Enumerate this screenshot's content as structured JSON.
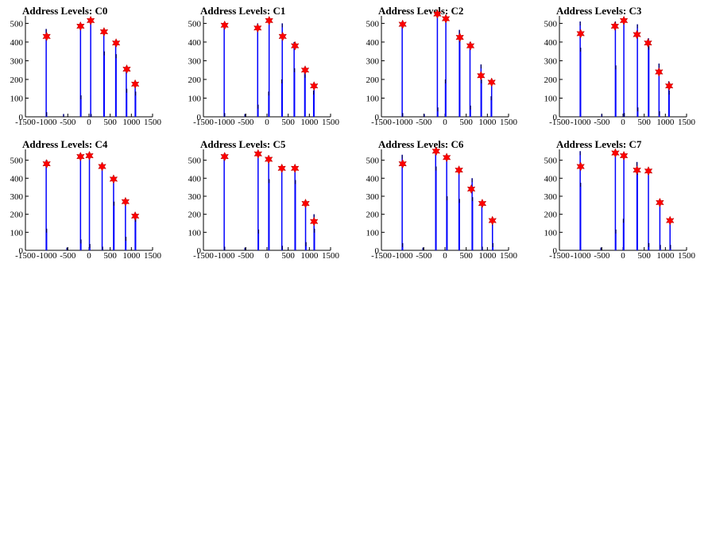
{
  "chart_data": [
    {
      "type": "bar",
      "title": "Address Levels: C0",
      "xlim": [
        -1500,
        1500
      ],
      "ylim": [
        0,
        540
      ],
      "x_ticks": [
        -1500,
        -1000,
        -500,
        0,
        500,
        1000,
        1500
      ],
      "x_tick_labels": [
        "-1500",
        "-1000",
        "-500",
        "0",
        "500",
        "1000",
        "1500"
      ],
      "y_ticks": [
        0,
        100,
        200,
        300,
        400,
        500
      ],
      "bars": [
        {
          "x": -1010,
          "y": 470
        },
        {
          "x": -1000,
          "y": 25
        },
        {
          "x": -600,
          "y": 15
        },
        {
          "x": -200,
          "y": 500
        },
        {
          "x": -190,
          "y": 115
        },
        {
          "x": 40,
          "y": 525
        },
        {
          "x": 50,
          "y": 15
        },
        {
          "x": 350,
          "y": 460
        },
        {
          "x": 360,
          "y": 350
        },
        {
          "x": 630,
          "y": 400
        },
        {
          "x": 640,
          "y": 335
        },
        {
          "x": 880,
          "y": 270
        },
        {
          "x": 890,
          "y": 150
        },
        {
          "x": 1090,
          "y": 190
        },
        {
          "x": 1100,
          "y": 135
        }
      ],
      "peaks": [
        {
          "x": -1000,
          "y": 430
        },
        {
          "x": -200,
          "y": 485
        },
        {
          "x": 40,
          "y": 515
        },
        {
          "x": 355,
          "y": 455
        },
        {
          "x": 640,
          "y": 395
        },
        {
          "x": 890,
          "y": 255
        },
        {
          "x": 1090,
          "y": 175
        }
      ]
    },
    {
      "type": "bar",
      "title": "Address Levels: C1",
      "xlim": [
        -1500,
        1500
      ],
      "ylim": [
        0,
        540
      ],
      "x_ticks": [
        -1500,
        -1000,
        -500,
        0,
        500,
        1000,
        1500
      ],
      "x_tick_labels": [
        "-1500",
        "-1000",
        "-500",
        "0",
        "500",
        "1000",
        "1500"
      ],
      "y_ticks": [
        0,
        100,
        200,
        300,
        400,
        500
      ],
      "bars": [
        {
          "x": -1010,
          "y": 505
        },
        {
          "x": -1000,
          "y": 20
        },
        {
          "x": -520,
          "y": 15
        },
        {
          "x": -220,
          "y": 500
        },
        {
          "x": -210,
          "y": 65
        },
        {
          "x": 50,
          "y": 530
        },
        {
          "x": 40,
          "y": 135
        },
        {
          "x": 360,
          "y": 500
        },
        {
          "x": 350,
          "y": 200
        },
        {
          "x": 640,
          "y": 400
        },
        {
          "x": 650,
          "y": 260
        },
        {
          "x": 890,
          "y": 265
        },
        {
          "x": 900,
          "y": 230
        },
        {
          "x": 1110,
          "y": 180
        },
        {
          "x": 1100,
          "y": 140
        }
      ],
      "peaks": [
        {
          "x": -1000,
          "y": 490
        },
        {
          "x": -220,
          "y": 475
        },
        {
          "x": 50,
          "y": 515
        },
        {
          "x": 370,
          "y": 430
        },
        {
          "x": 660,
          "y": 380
        },
        {
          "x": 900,
          "y": 250
        },
        {
          "x": 1110,
          "y": 165
        }
      ]
    },
    {
      "type": "bar",
      "title": "Address Levels: C2",
      "xlim": [
        -1500,
        1500
      ],
      "ylim": [
        0,
        540
      ],
      "x_ticks": [
        -1500,
        -1000,
        -500,
        0,
        500,
        1000,
        1500
      ],
      "x_tick_labels": [
        "-1500",
        "-1000",
        "-500",
        "0",
        "500",
        "1000",
        "1500"
      ],
      "y_ticks": [
        0,
        100,
        200,
        300,
        400,
        500
      ],
      "bars": [
        {
          "x": -1010,
          "y": 510
        },
        {
          "x": -1000,
          "y": 20
        },
        {
          "x": -490,
          "y": 15
        },
        {
          "x": -180,
          "y": 560
        },
        {
          "x": -170,
          "y": 50
        },
        {
          "x": 20,
          "y": 535
        },
        {
          "x": 10,
          "y": 200
        },
        {
          "x": 340,
          "y": 465
        },
        {
          "x": 350,
          "y": 420
        },
        {
          "x": 590,
          "y": 400
        },
        {
          "x": 600,
          "y": 60
        },
        {
          "x": 850,
          "y": 280
        },
        {
          "x": 860,
          "y": 200
        },
        {
          "x": 1100,
          "y": 200
        },
        {
          "x": 1090,
          "y": 110
        }
      ],
      "peaks": [
        {
          "x": -1000,
          "y": 495
        },
        {
          "x": -180,
          "y": 550
        },
        {
          "x": 20,
          "y": 525
        },
        {
          "x": 350,
          "y": 425
        },
        {
          "x": 600,
          "y": 380
        },
        {
          "x": 850,
          "y": 220
        },
        {
          "x": 1100,
          "y": 185
        }
      ]
    },
    {
      "type": "bar",
      "title": "Address Levels: C3",
      "xlim": [
        -1500,
        1500
      ],
      "ylim": [
        0,
        540
      ],
      "x_ticks": [
        -1500,
        -1000,
        -500,
        0,
        500,
        1000,
        1500
      ],
      "x_tick_labels": [
        "-1500",
        "-1000",
        "-500",
        "0",
        "500",
        "1000",
        "1500"
      ],
      "y_ticks": [
        0,
        100,
        200,
        300,
        400,
        500
      ],
      "bars": [
        {
          "x": -1010,
          "y": 510
        },
        {
          "x": -1000,
          "y": 370
        },
        {
          "x": -500,
          "y": 15
        },
        {
          "x": -180,
          "y": 510
        },
        {
          "x": -170,
          "y": 275
        },
        {
          "x": 20,
          "y": 530
        },
        {
          "x": 30,
          "y": 20
        },
        {
          "x": 340,
          "y": 495
        },
        {
          "x": 350,
          "y": 50
        },
        {
          "x": 600,
          "y": 420
        },
        {
          "x": 610,
          "y": 380
        },
        {
          "x": 850,
          "y": 285
        },
        {
          "x": 860,
          "y": 30
        },
        {
          "x": 1080,
          "y": 190
        },
        {
          "x": 1090,
          "y": 140
        }
      ],
      "peaks": [
        {
          "x": -1000,
          "y": 445
        },
        {
          "x": -190,
          "y": 485
        },
        {
          "x": 20,
          "y": 515
        },
        {
          "x": 330,
          "y": 440
        },
        {
          "x": 590,
          "y": 395
        },
        {
          "x": 850,
          "y": 240
        },
        {
          "x": 1090,
          "y": 165
        }
      ]
    },
    {
      "type": "bar",
      "title": "Address Levels: C4",
      "xlim": [
        -1500,
        1500
      ],
      "ylim": [
        0,
        560
      ],
      "x_ticks": [
        -1500,
        -1000,
        -500,
        0,
        500,
        1000,
        1500
      ],
      "x_tick_labels": [
        "-1500",
        "-1000",
        "-500",
        "0",
        "500",
        "1000",
        "1500"
      ],
      "y_ticks": [
        0,
        100,
        200,
        300,
        400,
        500
      ],
      "bars": [
        {
          "x": -1010,
          "y": 500
        },
        {
          "x": -1000,
          "y": 120
        },
        {
          "x": -520,
          "y": 15
        },
        {
          "x": -200,
          "y": 530
        },
        {
          "x": -190,
          "y": 60
        },
        {
          "x": 10,
          "y": 540
        },
        {
          "x": 20,
          "y": 35
        },
        {
          "x": 310,
          "y": 485
        },
        {
          "x": 320,
          "y": 20
        },
        {
          "x": 580,
          "y": 410
        },
        {
          "x": 590,
          "y": 270
        },
        {
          "x": 860,
          "y": 285
        },
        {
          "x": 870,
          "y": 75
        },
        {
          "x": 1090,
          "y": 210
        },
        {
          "x": 1100,
          "y": 180
        }
      ],
      "peaks": [
        {
          "x": -1000,
          "y": 480
        },
        {
          "x": -200,
          "y": 520
        },
        {
          "x": 10,
          "y": 525
        },
        {
          "x": 310,
          "y": 465
        },
        {
          "x": 580,
          "y": 395
        },
        {
          "x": 860,
          "y": 270
        },
        {
          "x": 1090,
          "y": 190
        }
      ]
    },
    {
      "type": "bar",
      "title": "Address Levels: C5",
      "xlim": [
        -1500,
        1500
      ],
      "ylim": [
        0,
        560
      ],
      "x_ticks": [
        -1500,
        -1000,
        -500,
        0,
        500,
        1000,
        1500
      ],
      "x_tick_labels": [
        "-1500",
        "-1000",
        "-500",
        "0",
        "500",
        "1000",
        "1500"
      ],
      "y_ticks": [
        0,
        100,
        200,
        300,
        400,
        500
      ],
      "bars": [
        {
          "x": -1010,
          "y": 520
        },
        {
          "x": -1000,
          "y": 20
        },
        {
          "x": -520,
          "y": 15
        },
        {
          "x": -210,
          "y": 545
        },
        {
          "x": -200,
          "y": 115
        },
        {
          "x": 40,
          "y": 510
        },
        {
          "x": 50,
          "y": 395
        },
        {
          "x": 350,
          "y": 460
        },
        {
          "x": 360,
          "y": 25
        },
        {
          "x": 660,
          "y": 465
        },
        {
          "x": 670,
          "y": 390
        },
        {
          "x": 910,
          "y": 265
        },
        {
          "x": 920,
          "y": 45
        },
        {
          "x": 1110,
          "y": 200
        },
        {
          "x": 1120,
          "y": 120
        }
      ],
      "peaks": [
        {
          "x": -1000,
          "y": 520
        },
        {
          "x": -210,
          "y": 535
        },
        {
          "x": 40,
          "y": 505
        },
        {
          "x": 350,
          "y": 455
        },
        {
          "x": 660,
          "y": 455
        },
        {
          "x": 910,
          "y": 260
        },
        {
          "x": 1110,
          "y": 160
        }
      ]
    },
    {
      "type": "bar",
      "title": "Address Levels: C6",
      "xlim": [
        -1500,
        1500
      ],
      "ylim": [
        0,
        560
      ],
      "x_ticks": [
        -1500,
        -1000,
        -500,
        0,
        500,
        1000,
        1500
      ],
      "x_tick_labels": [
        "-1500",
        "-1000",
        "-500",
        "0",
        "500",
        "1000",
        "1500"
      ],
      "y_ticks": [
        0,
        100,
        200,
        300,
        400,
        500
      ],
      "bars": [
        {
          "x": -1010,
          "y": 530
        },
        {
          "x": -1000,
          "y": 40
        },
        {
          "x": -520,
          "y": 15
        },
        {
          "x": -220,
          "y": 550
        },
        {
          "x": -210,
          "y": 465
        },
        {
          "x": 40,
          "y": 530
        },
        {
          "x": 50,
          "y": 300
        },
        {
          "x": 330,
          "y": 460
        },
        {
          "x": 340,
          "y": 285
        },
        {
          "x": 640,
          "y": 400
        },
        {
          "x": 650,
          "y": 295
        },
        {
          "x": 870,
          "y": 260
        },
        {
          "x": 880,
          "y": 20
        },
        {
          "x": 1120,
          "y": 160
        },
        {
          "x": 1130,
          "y": 40
        }
      ],
      "peaks": [
        {
          "x": -1000,
          "y": 480
        },
        {
          "x": -210,
          "y": 550
        },
        {
          "x": 40,
          "y": 515
        },
        {
          "x": 330,
          "y": 445
        },
        {
          "x": 620,
          "y": 340
        },
        {
          "x": 880,
          "y": 260
        },
        {
          "x": 1120,
          "y": 165
        }
      ]
    },
    {
      "type": "bar",
      "title": "Address Levels: C7",
      "xlim": [
        -1500,
        1500
      ],
      "ylim": [
        0,
        560
      ],
      "x_ticks": [
        -1500,
        -1000,
        -500,
        0,
        500,
        1000,
        1500
      ],
      "x_tick_labels": [
        "-1500",
        "-1000",
        "-500",
        "0",
        "500",
        "1000",
        "1500"
      ],
      "y_ticks": [
        0,
        100,
        200,
        300,
        400,
        500
      ],
      "bars": [
        {
          "x": -1010,
          "y": 550
        },
        {
          "x": -1000,
          "y": 375
        },
        {
          "x": -520,
          "y": 15
        },
        {
          "x": -180,
          "y": 545
        },
        {
          "x": -170,
          "y": 115
        },
        {
          "x": 20,
          "y": 535
        },
        {
          "x": 10,
          "y": 175
        },
        {
          "x": 330,
          "y": 490
        },
        {
          "x": 340,
          "y": 440
        },
        {
          "x": 600,
          "y": 445
        },
        {
          "x": 610,
          "y": 40
        },
        {
          "x": 870,
          "y": 265
        },
        {
          "x": 880,
          "y": 30
        },
        {
          "x": 1110,
          "y": 180
        },
        {
          "x": 1120,
          "y": 30
        }
      ],
      "peaks": [
        {
          "x": -1000,
          "y": 465
        },
        {
          "x": -180,
          "y": 540
        },
        {
          "x": 20,
          "y": 525
        },
        {
          "x": 330,
          "y": 445
        },
        {
          "x": 600,
          "y": 440
        },
        {
          "x": 870,
          "y": 265
        },
        {
          "x": 1110,
          "y": 165
        }
      ]
    }
  ],
  "colors": {
    "bar": "#0000ff",
    "bar_tip": "#000000",
    "peak_marker": "#ff0000",
    "axis": "#000000"
  }
}
